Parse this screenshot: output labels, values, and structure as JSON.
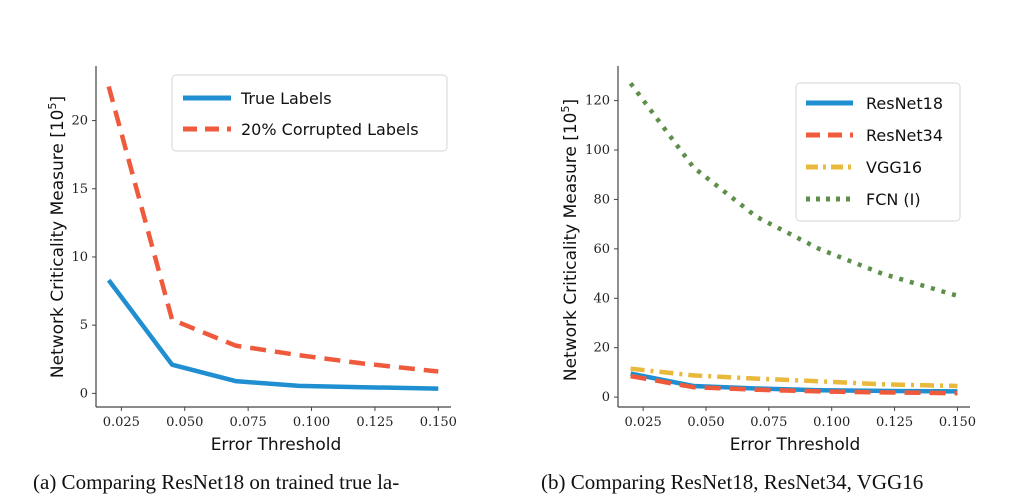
{
  "chart_data": [
    {
      "type": "line",
      "xlabel": "Error Threshold",
      "ylabel": "Network Criticality Measure [10",
      "ylabel_exp": "5",
      "ylabel_close": "]",
      "xlim": [
        0.015,
        0.155
      ],
      "ylim": [
        -1,
        24
      ],
      "xticks": [
        "0.025",
        "0.050",
        "0.075",
        "0.100",
        "0.125",
        "0.150"
      ],
      "yticks": [
        "0",
        "5",
        "10",
        "15",
        "20"
      ],
      "grid": false,
      "legend_position": "top-right",
      "x": [
        0.02,
        0.045,
        0.07,
        0.095,
        0.12,
        0.15
      ],
      "series": [
        {
          "name": "True Labels",
          "color": "#1f8fd1",
          "style": "solid",
          "values": [
            8.3,
            2.1,
            0.9,
            0.55,
            0.45,
            0.35
          ]
        },
        {
          "name": "20% Corrupted Labels",
          "color": "#f05a3c",
          "style": "dashed",
          "values": [
            22.5,
            5.4,
            3.5,
            2.8,
            2.2,
            1.6
          ]
        }
      ]
    },
    {
      "type": "line",
      "xlabel": "Error Threshold",
      "ylabel": "Network Criticality Measure [10",
      "ylabel_exp": "5",
      "ylabel_close": "]",
      "xlim": [
        0.015,
        0.155
      ],
      "ylim": [
        -4,
        134
      ],
      "xticks": [
        "0.025",
        "0.050",
        "0.075",
        "0.100",
        "0.125",
        "0.150"
      ],
      "yticks": [
        "0",
        "20",
        "40",
        "60",
        "80",
        "100",
        "120"
      ],
      "grid": false,
      "legend_position": "top-right",
      "x": [
        0.02,
        0.045,
        0.07,
        0.095,
        0.12,
        0.15
      ],
      "series": [
        {
          "name": "ResNet18",
          "color": "#1f8fd1",
          "style": "solid",
          "values": [
            9.5,
            4.5,
            3.5,
            2.8,
            2.5,
            2.3
          ]
        },
        {
          "name": "ResNet34",
          "color": "#f05a3c",
          "style": "dashed",
          "values": [
            8.5,
            4.0,
            3.0,
            2.3,
            1.9,
            1.6
          ]
        },
        {
          "name": "VGG16",
          "color": "#e8b93a",
          "style": "dashdot",
          "values": [
            11.5,
            8.8,
            7.5,
            6.4,
            5.2,
            4.5
          ]
        },
        {
          "name": "FCN (I)",
          "color": "#5e8f4a",
          "style": "dotted",
          "values": [
            127,
            93,
            73,
            60,
            50,
            41
          ]
        }
      ]
    }
  ],
  "captions": {
    "a": "(a) Comparing ResNet18 on trained true la-",
    "b": "(b) Comparing ResNet18, ResNet34, VGG16"
  }
}
